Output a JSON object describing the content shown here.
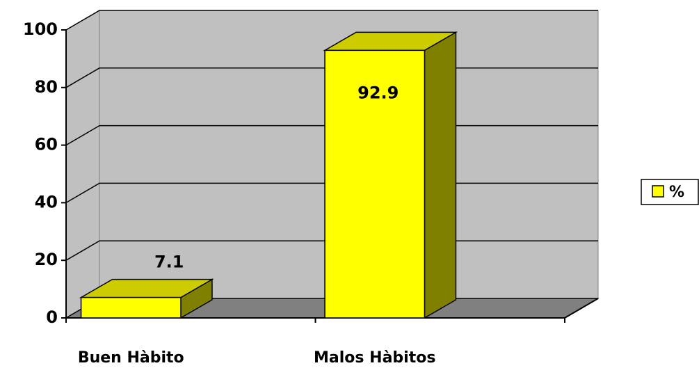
{
  "chart_data": {
    "type": "bar",
    "categories": [
      "Buen Hàbito",
      "Malos Hàbitos"
    ],
    "series": [
      {
        "name": "%",
        "color": "#ffff00",
        "values": [
          7.1,
          92.9
        ]
      }
    ],
    "ylim": [
      0,
      100
    ],
    "yticks": [
      0,
      20,
      40,
      60,
      80,
      100
    ],
    "grid": true,
    "legend": "right"
  }
}
